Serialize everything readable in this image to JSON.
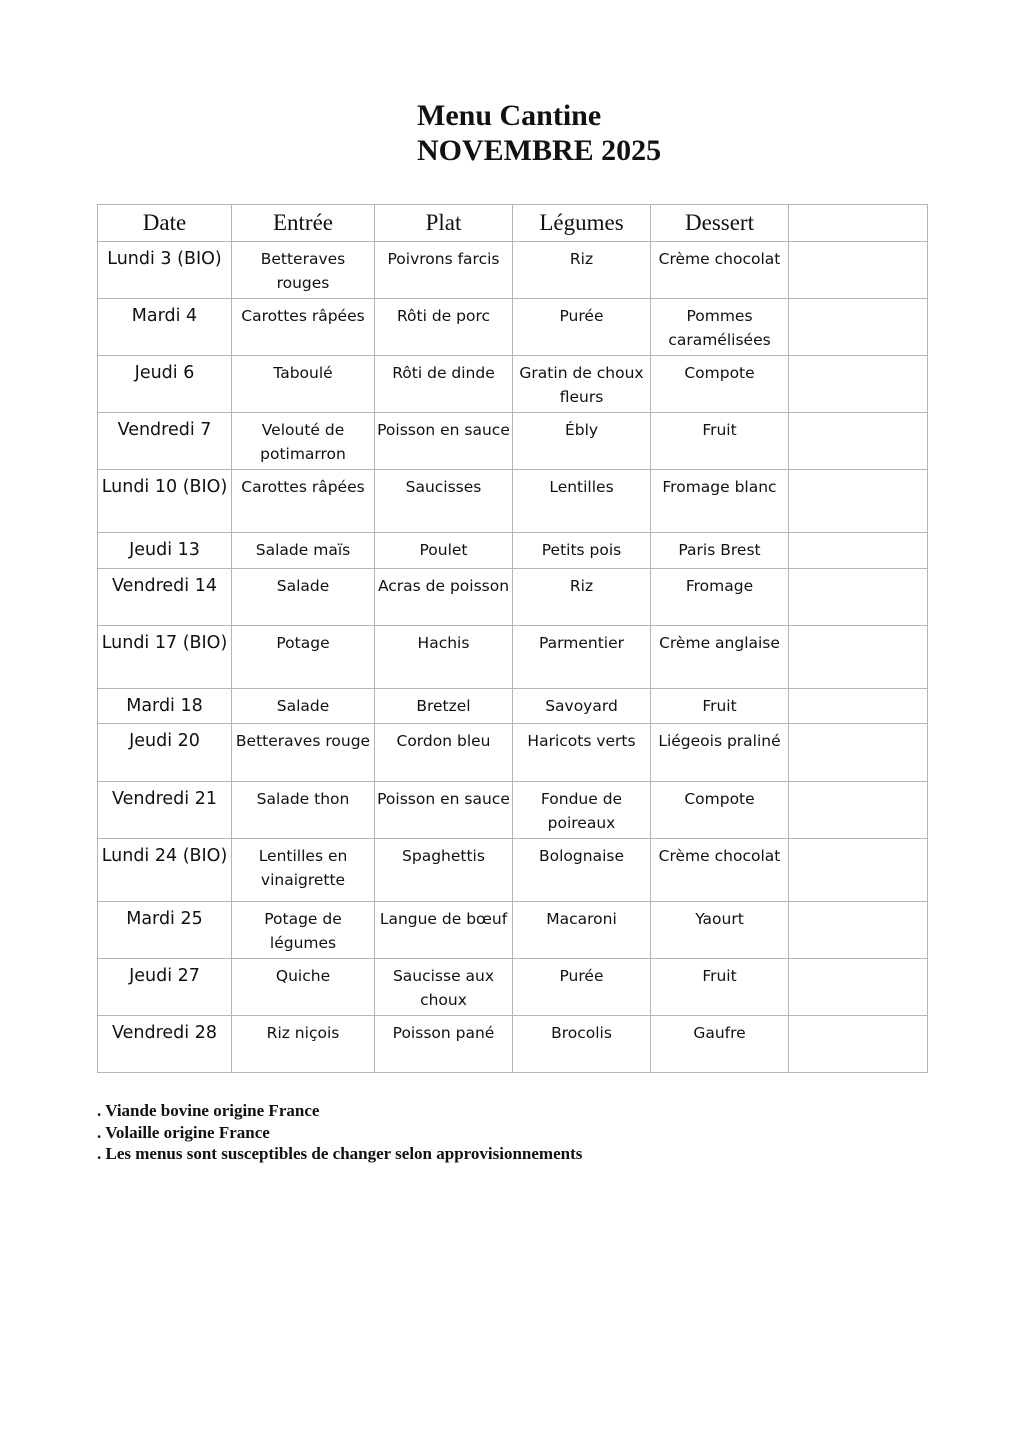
{
  "title": {
    "line1": "Menu Cantine",
    "line2": "NOVEMBRE 2025"
  },
  "table": {
    "headers": [
      "Date",
      "Entrée",
      "Plat",
      "Légumes",
      "Dessert",
      ""
    ],
    "rows": [
      [
        "Lundi 3 (BIO)",
        "Betteraves rouges",
        "Poivrons farcis",
        "Riz",
        "Crème chocolat",
        ""
      ],
      [
        "Mardi 4",
        "Carottes râpées",
        "Rôti de porc",
        "Purée",
        "Pommes caramélisées",
        ""
      ],
      [
        "Jeudi 6",
        "Taboulé",
        "Rôti de dinde",
        "Gratin de choux fleurs",
        "Compote",
        ""
      ],
      [
        "Vendredi 7",
        "Velouté de potimarron",
        "Poisson en sauce",
        "Ébly",
        "Fruit",
        ""
      ],
      [
        "Lundi 10 (BIO)",
        "Carottes râpées",
        "Saucisses",
        "Lentilles",
        "Fromage blanc",
        ""
      ],
      [
        "Jeudi 13",
        "Salade maïs",
        "Poulet",
        "Petits pois",
        "Paris Brest",
        ""
      ],
      [
        "Vendredi 14",
        "Salade",
        "Acras de poisson",
        "Riz",
        "Fromage",
        ""
      ],
      [
        "Lundi 17 (BIO)",
        "Potage",
        "Hachis",
        "Parmentier",
        "Crème anglaise",
        ""
      ],
      [
        "Mardi 18",
        "Salade",
        "Bretzel",
        "Savoyard",
        "Fruit",
        ""
      ],
      [
        "Jeudi 20",
        "Betteraves rouge",
        "Cordon bleu",
        "Haricots verts",
        "Liégeois praliné",
        ""
      ],
      [
        "Vendredi 21",
        "Salade thon",
        "Poisson en sauce",
        "Fondue de poireaux",
        "Compote",
        ""
      ],
      [
        "Lundi 24 (BIO)",
        "Lentilles en vinaigrette",
        "Spaghettis",
        "Bolognaise",
        "Crème chocolat",
        ""
      ],
      [
        "Mardi 25",
        "Potage de légumes",
        "Langue de bœuf",
        "Macaroni",
        "Yaourt",
        ""
      ],
      [
        "Jeudi 27",
        "Quiche",
        "Saucisse aux choux",
        "Purée",
        "Fruit",
        ""
      ],
      [
        "Vendredi 28",
        "Riz niçois",
        "Poisson pané",
        "Brocolis",
        "Gaufre",
        ""
      ]
    ]
  },
  "notes": [
    ". Viande bovine origine France",
    ". Volaille origine France",
    ". Les menus sont susceptibles de changer selon approvisionnements"
  ]
}
